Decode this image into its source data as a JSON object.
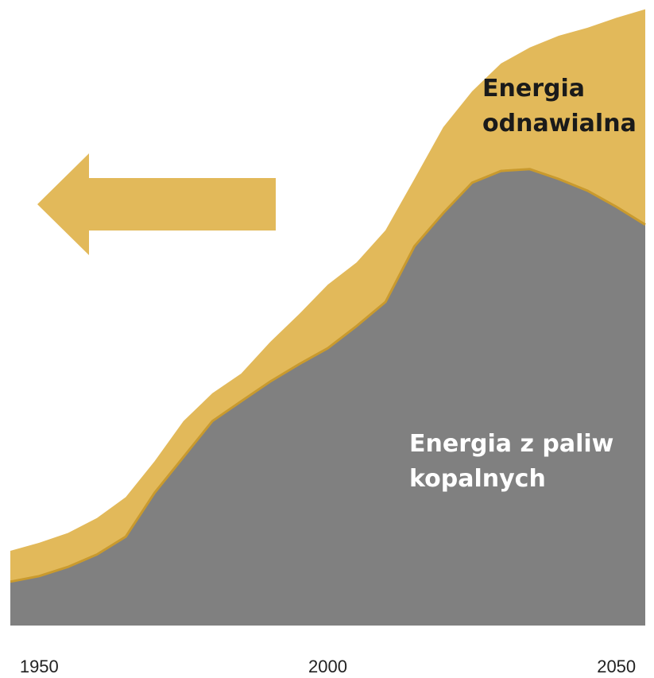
{
  "chart_data": {
    "type": "stacked_area",
    "x": [
      1945,
      1950,
      1955,
      1960,
      1965,
      1970,
      1975,
      1980,
      1985,
      1990,
      1995,
      2000,
      2005,
      2010,
      2015,
      2020,
      2025,
      2030,
      2035,
      2040,
      2045,
      2050,
      2055
    ],
    "xlim": [
      1945,
      2055
    ],
    "xticks": [
      1950,
      2000,
      2050
    ],
    "ylim": [
      0,
      100
    ],
    "series": [
      {
        "name": "Energia z paliw kopalnych",
        "color": "#808080",
        "values": [
          7.1,
          8.0,
          9.5,
          11.5,
          14.4,
          21.5,
          27.3,
          33.1,
          36.3,
          39.5,
          42.3,
          44.9,
          48.5,
          52.4,
          61.4,
          66.8,
          71.7,
          73.6,
          73.9,
          72.3,
          70.4,
          67.8,
          64.9
        ]
      },
      {
        "name": "Energia odnawialna",
        "color": "#e2b95a",
        "values": [
          5.0,
          5.4,
          5.5,
          5.9,
          6.4,
          5.1,
          5.8,
          4.5,
          4.5,
          6.4,
          8.1,
          10.3,
          10.3,
          11.6,
          10.9,
          13.9,
          14.8,
          17.4,
          19.7,
          23.2,
          26.4,
          30.6,
          34.9
        ]
      }
    ]
  }
}
